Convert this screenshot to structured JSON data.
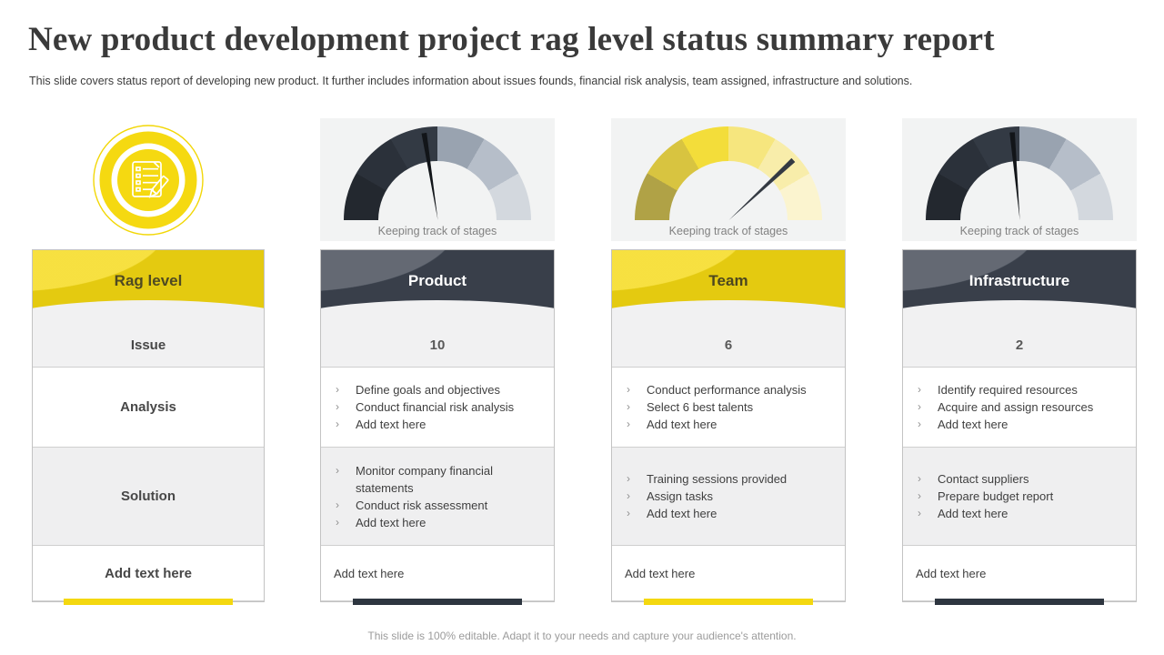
{
  "slide": {
    "title": "New product development project rag level status summary report",
    "subtitle": "This slide covers status report of developing new product. It further includes information about issues founds, financial risk analysis, team assigned, infrastructure and solutions.",
    "footer": "This slide is 100% editable. Adapt it to your needs and capture your audience's attention."
  },
  "colors": {
    "yellow": "#f5d911",
    "dark_slate": "#3d4450",
    "accent_dark": "#2e3640",
    "row_gray": "#f1f1f2",
    "panel_gray": "#f2f3f3"
  },
  "rag_table": {
    "icon": "clipboard-checklist-icon",
    "header": "Rag level",
    "header_bg": "#f5d911",
    "header_text_color": "#4f4a22",
    "rows": [
      "Issue",
      "Analysis",
      "Solution",
      "Add text here"
    ],
    "accent_bar": "#f4d810"
  },
  "columns": [
    {
      "name": "Product",
      "header_bg": "#3d4450",
      "header_text_color": "#ffffff",
      "accent_bar": "#2e3640",
      "count": "10",
      "gauge_caption": "Keeping track of stages",
      "gauge": {
        "segments": [
          "#23282f",
          "#2b313a",
          "#333a44",
          "#99a3b0",
          "#b6bec9",
          "#d3d8de"
        ],
        "needle_angle": -9,
        "needle_color": "#121519"
      },
      "analysis": [
        "Define goals and objectives",
        "Conduct financial risk analysis",
        "Add text here"
      ],
      "solution": [
        "Monitor company financial statements",
        "Conduct risk assessment",
        "Add text here"
      ],
      "footer_text": "Add text here"
    },
    {
      "name": "Team",
      "header_bg": "#f5d911",
      "header_text_color": "#4c471f",
      "accent_bar": "#f4d810",
      "count": "6",
      "gauge_caption": "Keeping track of stages",
      "gauge": {
        "segments": [
          "#b0a246",
          "#d8c440",
          "#f3dd3a",
          "#f6e67e",
          "#f8edaa",
          "#fbf4cf"
        ],
        "needle_angle": 47,
        "needle_color": "#343a42"
      },
      "analysis": [
        "Conduct performance analysis",
        "Select 6 best talents",
        "Add text here"
      ],
      "solution": [
        "Training sessions provided",
        "Assign tasks",
        "Add text here"
      ],
      "footer_text": "Add text here"
    },
    {
      "name": "Infrastructure",
      "header_bg": "#3d4450",
      "header_text_color": "#ffffff",
      "accent_bar": "#2e3640",
      "count": "2",
      "gauge_caption": "Keeping track of stages",
      "gauge": {
        "segments": [
          "#23282f",
          "#2b313a",
          "#333a44",
          "#99a3b0",
          "#b6bec9",
          "#d3d8de"
        ],
        "needle_angle": -5,
        "needle_color": "#121519"
      },
      "analysis": [
        "Identify required resources",
        "Acquire and assign resources",
        "Add text here"
      ],
      "solution": [
        "Contact suppliers",
        "Prepare budget report",
        "Add text here"
      ],
      "footer_text": "Add text here"
    }
  ]
}
